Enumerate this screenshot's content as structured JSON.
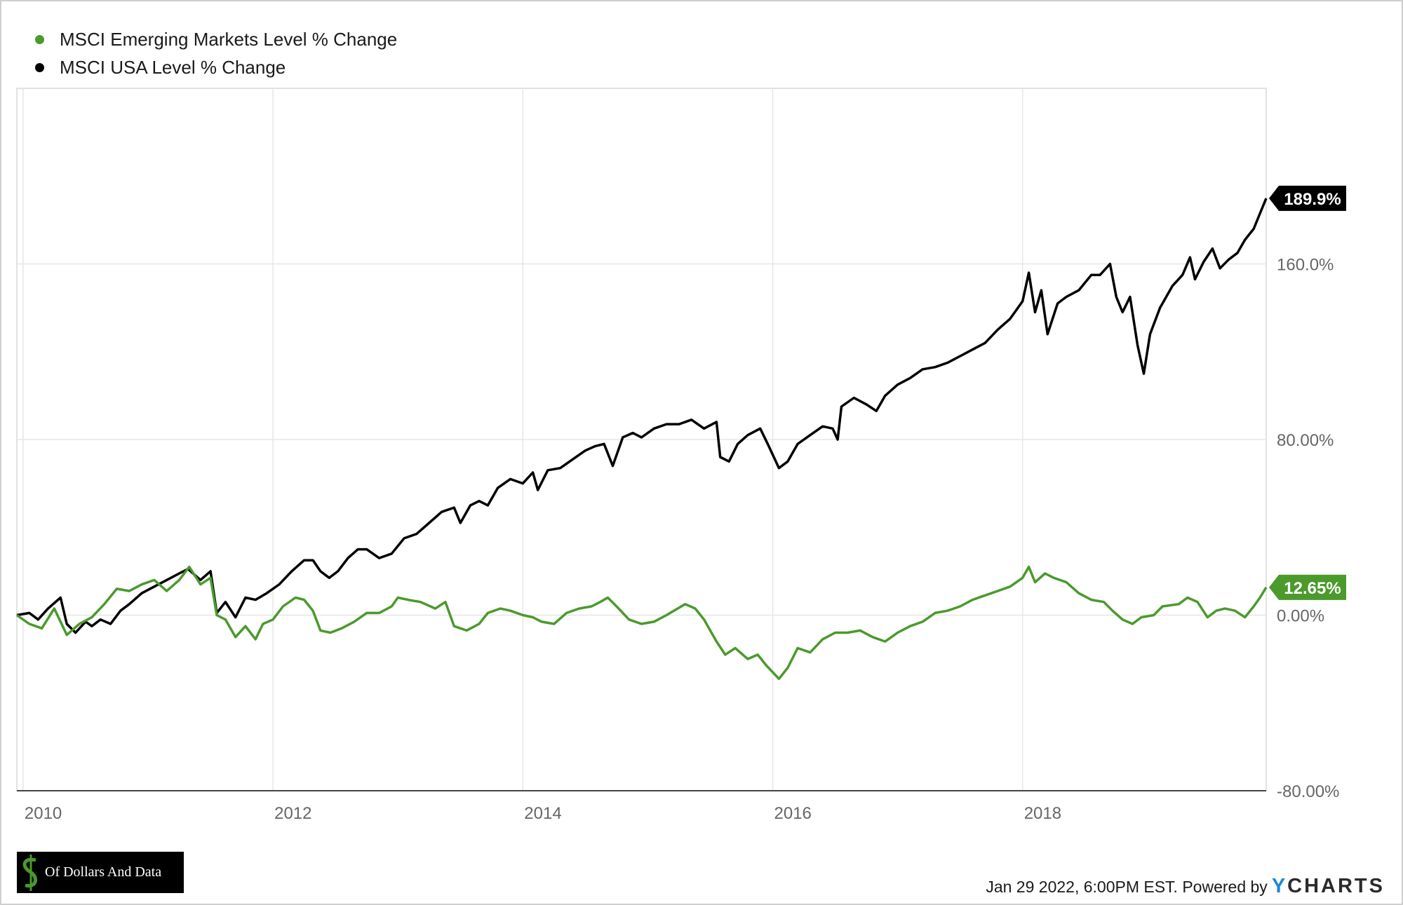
{
  "legend": [
    {
      "label": "MSCI Emerging Markets Level % Change",
      "color": "#4a9a2c"
    },
    {
      "label": "MSCI USA Level % Change",
      "color": "#000000"
    }
  ],
  "footer": {
    "timestamp": "Jan 29 2022, 6:00PM EST.",
    "powered_by": "Powered by",
    "brand_y": "Y",
    "brand_rest": "CHARTS"
  },
  "logo": {
    "text": "Of Dollars And Data"
  },
  "chart_data": {
    "type": "line",
    "xlim": [
      2009.95,
      2019.95
    ],
    "ylim": [
      -80,
      240
    ],
    "x_ticks": [
      {
        "value": 2010,
        "label": "2010"
      },
      {
        "value": 2012,
        "label": "2012"
      },
      {
        "value": 2014,
        "label": "2014"
      },
      {
        "value": 2016,
        "label": "2016"
      },
      {
        "value": 2018,
        "label": "2018"
      }
    ],
    "y_ticks": [
      {
        "value": 160,
        "label": "160.0%"
      },
      {
        "value": 80,
        "label": "80.00%"
      },
      {
        "value": 0,
        "label": "0.00%"
      },
      {
        "value": -80,
        "label": "-80.00%"
      }
    ],
    "grid": true,
    "series": [
      {
        "name": "MSCI Emerging Markets Level % Change",
        "color": "#4a9a2c",
        "end_label": "12.65%",
        "points": [
          [
            2009.95,
            0
          ],
          [
            2010.05,
            -4
          ],
          [
            2010.15,
            -6
          ],
          [
            2010.25,
            3
          ],
          [
            2010.35,
            -9
          ],
          [
            2010.45,
            -4
          ],
          [
            2010.55,
            -1
          ],
          [
            2010.65,
            5
          ],
          [
            2010.75,
            12
          ],
          [
            2010.85,
            11
          ],
          [
            2010.95,
            14
          ],
          [
            2011.05,
            16
          ],
          [
            2011.15,
            11
          ],
          [
            2011.25,
            16
          ],
          [
            2011.33,
            22
          ],
          [
            2011.42,
            14
          ],
          [
            2011.5,
            17
          ],
          [
            2011.55,
            0
          ],
          [
            2011.62,
            -2
          ],
          [
            2011.7,
            -10
          ],
          [
            2011.78,
            -5
          ],
          [
            2011.86,
            -11
          ],
          [
            2011.92,
            -4
          ],
          [
            2012.0,
            -2
          ],
          [
            2012.08,
            4
          ],
          [
            2012.18,
            8
          ],
          [
            2012.25,
            7
          ],
          [
            2012.32,
            2
          ],
          [
            2012.38,
            -7
          ],
          [
            2012.46,
            -8
          ],
          [
            2012.55,
            -6
          ],
          [
            2012.65,
            -3
          ],
          [
            2012.75,
            1
          ],
          [
            2012.85,
            1
          ],
          [
            2012.95,
            4
          ],
          [
            2013.0,
            8
          ],
          [
            2013.08,
            7
          ],
          [
            2013.18,
            6
          ],
          [
            2013.3,
            3
          ],
          [
            2013.38,
            6
          ],
          [
            2013.45,
            -5
          ],
          [
            2013.55,
            -7
          ],
          [
            2013.65,
            -4
          ],
          [
            2013.72,
            1
          ],
          [
            2013.82,
            3
          ],
          [
            2013.9,
            2
          ],
          [
            2014.0,
            0
          ],
          [
            2014.08,
            -1
          ],
          [
            2014.15,
            -3
          ],
          [
            2014.25,
            -4
          ],
          [
            2014.35,
            1
          ],
          [
            2014.45,
            3
          ],
          [
            2014.55,
            4
          ],
          [
            2014.62,
            6
          ],
          [
            2014.68,
            8
          ],
          [
            2014.75,
            4
          ],
          [
            2014.85,
            -2
          ],
          [
            2014.95,
            -4
          ],
          [
            2015.05,
            -3
          ],
          [
            2015.15,
            0
          ],
          [
            2015.3,
            5
          ],
          [
            2015.38,
            3
          ],
          [
            2015.45,
            -2
          ],
          [
            2015.55,
            -12
          ],
          [
            2015.62,
            -18
          ],
          [
            2015.7,
            -15
          ],
          [
            2015.8,
            -20
          ],
          [
            2015.88,
            -18
          ],
          [
            2015.95,
            -23
          ],
          [
            2016.05,
            -29
          ],
          [
            2016.12,
            -24
          ],
          [
            2016.2,
            -15
          ],
          [
            2016.3,
            -17
          ],
          [
            2016.4,
            -11
          ],
          [
            2016.5,
            -8
          ],
          [
            2016.6,
            -8
          ],
          [
            2016.7,
            -7
          ],
          [
            2016.8,
            -10
          ],
          [
            2016.9,
            -12
          ],
          [
            2017.0,
            -8
          ],
          [
            2017.1,
            -5
          ],
          [
            2017.2,
            -3
          ],
          [
            2017.3,
            1
          ],
          [
            2017.4,
            2
          ],
          [
            2017.5,
            4
          ],
          [
            2017.6,
            7
          ],
          [
            2017.7,
            9
          ],
          [
            2017.8,
            11
          ],
          [
            2017.9,
            13
          ],
          [
            2018.0,
            17
          ],
          [
            2018.05,
            22
          ],
          [
            2018.1,
            15
          ],
          [
            2018.18,
            19
          ],
          [
            2018.25,
            17
          ],
          [
            2018.35,
            15
          ],
          [
            2018.45,
            10
          ],
          [
            2018.55,
            7
          ],
          [
            2018.65,
            6
          ],
          [
            2018.72,
            2
          ],
          [
            2018.8,
            -2
          ],
          [
            2018.88,
            -4
          ],
          [
            2018.95,
            -1
          ],
          [
            2019.05,
            0
          ],
          [
            2019.12,
            4
          ],
          [
            2019.25,
            5
          ],
          [
            2019.32,
            8
          ],
          [
            2019.4,
            6
          ],
          [
            2019.48,
            -1
          ],
          [
            2019.55,
            2
          ],
          [
            2019.62,
            3
          ],
          [
            2019.7,
            2
          ],
          [
            2019.78,
            -1
          ],
          [
            2019.85,
            4
          ],
          [
            2019.9,
            8
          ],
          [
            2019.95,
            12.65
          ]
        ]
      },
      {
        "name": "MSCI USA Level % Change",
        "color": "#000000",
        "end_label": "189.9%",
        "points": [
          [
            2009.95,
            0
          ],
          [
            2010.05,
            1
          ],
          [
            2010.12,
            -2
          ],
          [
            2010.2,
            3
          ],
          [
            2010.3,
            8
          ],
          [
            2010.35,
            -4
          ],
          [
            2010.42,
            -8
          ],
          [
            2010.5,
            -3
          ],
          [
            2010.55,
            -5
          ],
          [
            2010.62,
            -2
          ],
          [
            2010.7,
            -4
          ],
          [
            2010.78,
            2
          ],
          [
            2010.85,
            5
          ],
          [
            2010.95,
            10
          ],
          [
            2011.05,
            13
          ],
          [
            2011.15,
            16
          ],
          [
            2011.25,
            19
          ],
          [
            2011.32,
            21
          ],
          [
            2011.42,
            16
          ],
          [
            2011.5,
            20
          ],
          [
            2011.55,
            1
          ],
          [
            2011.62,
            6
          ],
          [
            2011.7,
            -1
          ],
          [
            2011.78,
            8
          ],
          [
            2011.86,
            7
          ],
          [
            2011.95,
            10
          ],
          [
            2012.05,
            14
          ],
          [
            2012.15,
            20
          ],
          [
            2012.25,
            25
          ],
          [
            2012.32,
            25
          ],
          [
            2012.38,
            20
          ],
          [
            2012.45,
            17
          ],
          [
            2012.52,
            20
          ],
          [
            2012.6,
            26
          ],
          [
            2012.68,
            30
          ],
          [
            2012.75,
            30
          ],
          [
            2012.85,
            26
          ],
          [
            2012.95,
            28
          ],
          [
            2013.05,
            35
          ],
          [
            2013.15,
            37
          ],
          [
            2013.25,
            42
          ],
          [
            2013.35,
            47
          ],
          [
            2013.45,
            49
          ],
          [
            2013.5,
            42
          ],
          [
            2013.58,
            50
          ],
          [
            2013.65,
            52
          ],
          [
            2013.72,
            50
          ],
          [
            2013.8,
            58
          ],
          [
            2013.9,
            62
          ],
          [
            2014.0,
            60
          ],
          [
            2014.08,
            65
          ],
          [
            2014.12,
            57
          ],
          [
            2014.2,
            66
          ],
          [
            2014.3,
            67
          ],
          [
            2014.4,
            71
          ],
          [
            2014.5,
            75
          ],
          [
            2014.58,
            77
          ],
          [
            2014.65,
            78
          ],
          [
            2014.72,
            68
          ],
          [
            2014.8,
            81
          ],
          [
            2014.88,
            83
          ],
          [
            2014.95,
            81
          ],
          [
            2015.05,
            85
          ],
          [
            2015.15,
            87
          ],
          [
            2015.25,
            87
          ],
          [
            2015.35,
            89
          ],
          [
            2015.45,
            85
          ],
          [
            2015.55,
            88
          ],
          [
            2015.58,
            72
          ],
          [
            2015.65,
            70
          ],
          [
            2015.72,
            78
          ],
          [
            2015.8,
            82
          ],
          [
            2015.9,
            85
          ],
          [
            2015.96,
            78
          ],
          [
            2016.05,
            67
          ],
          [
            2016.12,
            70
          ],
          [
            2016.2,
            78
          ],
          [
            2016.3,
            82
          ],
          [
            2016.4,
            86
          ],
          [
            2016.48,
            85
          ],
          [
            2016.52,
            80
          ],
          [
            2016.55,
            95
          ],
          [
            2016.65,
            99
          ],
          [
            2016.75,
            96
          ],
          [
            2016.83,
            93
          ],
          [
            2016.9,
            100
          ],
          [
            2017.0,
            105
          ],
          [
            2017.1,
            108
          ],
          [
            2017.2,
            112
          ],
          [
            2017.3,
            113
          ],
          [
            2017.4,
            115
          ],
          [
            2017.5,
            118
          ],
          [
            2017.6,
            121
          ],
          [
            2017.7,
            124
          ],
          [
            2017.8,
            130
          ],
          [
            2017.9,
            135
          ],
          [
            2018.0,
            143
          ],
          [
            2018.05,
            156
          ],
          [
            2018.1,
            138
          ],
          [
            2018.15,
            148
          ],
          [
            2018.2,
            128
          ],
          [
            2018.28,
            142
          ],
          [
            2018.35,
            145
          ],
          [
            2018.45,
            148
          ],
          [
            2018.55,
            155
          ],
          [
            2018.62,
            155
          ],
          [
            2018.7,
            160
          ],
          [
            2018.75,
            145
          ],
          [
            2018.8,
            138
          ],
          [
            2018.86,
            145
          ],
          [
            2018.92,
            123
          ],
          [
            2018.97,
            110
          ],
          [
            2019.02,
            128
          ],
          [
            2019.1,
            140
          ],
          [
            2019.2,
            150
          ],
          [
            2019.28,
            155
          ],
          [
            2019.34,
            163
          ],
          [
            2019.38,
            153
          ],
          [
            2019.45,
            161
          ],
          [
            2019.52,
            167
          ],
          [
            2019.58,
            158
          ],
          [
            2019.65,
            162
          ],
          [
            2019.72,
            165
          ],
          [
            2019.78,
            171
          ],
          [
            2019.85,
            176
          ],
          [
            2019.9,
            183
          ],
          [
            2019.95,
            189.9
          ]
        ]
      }
    ]
  }
}
